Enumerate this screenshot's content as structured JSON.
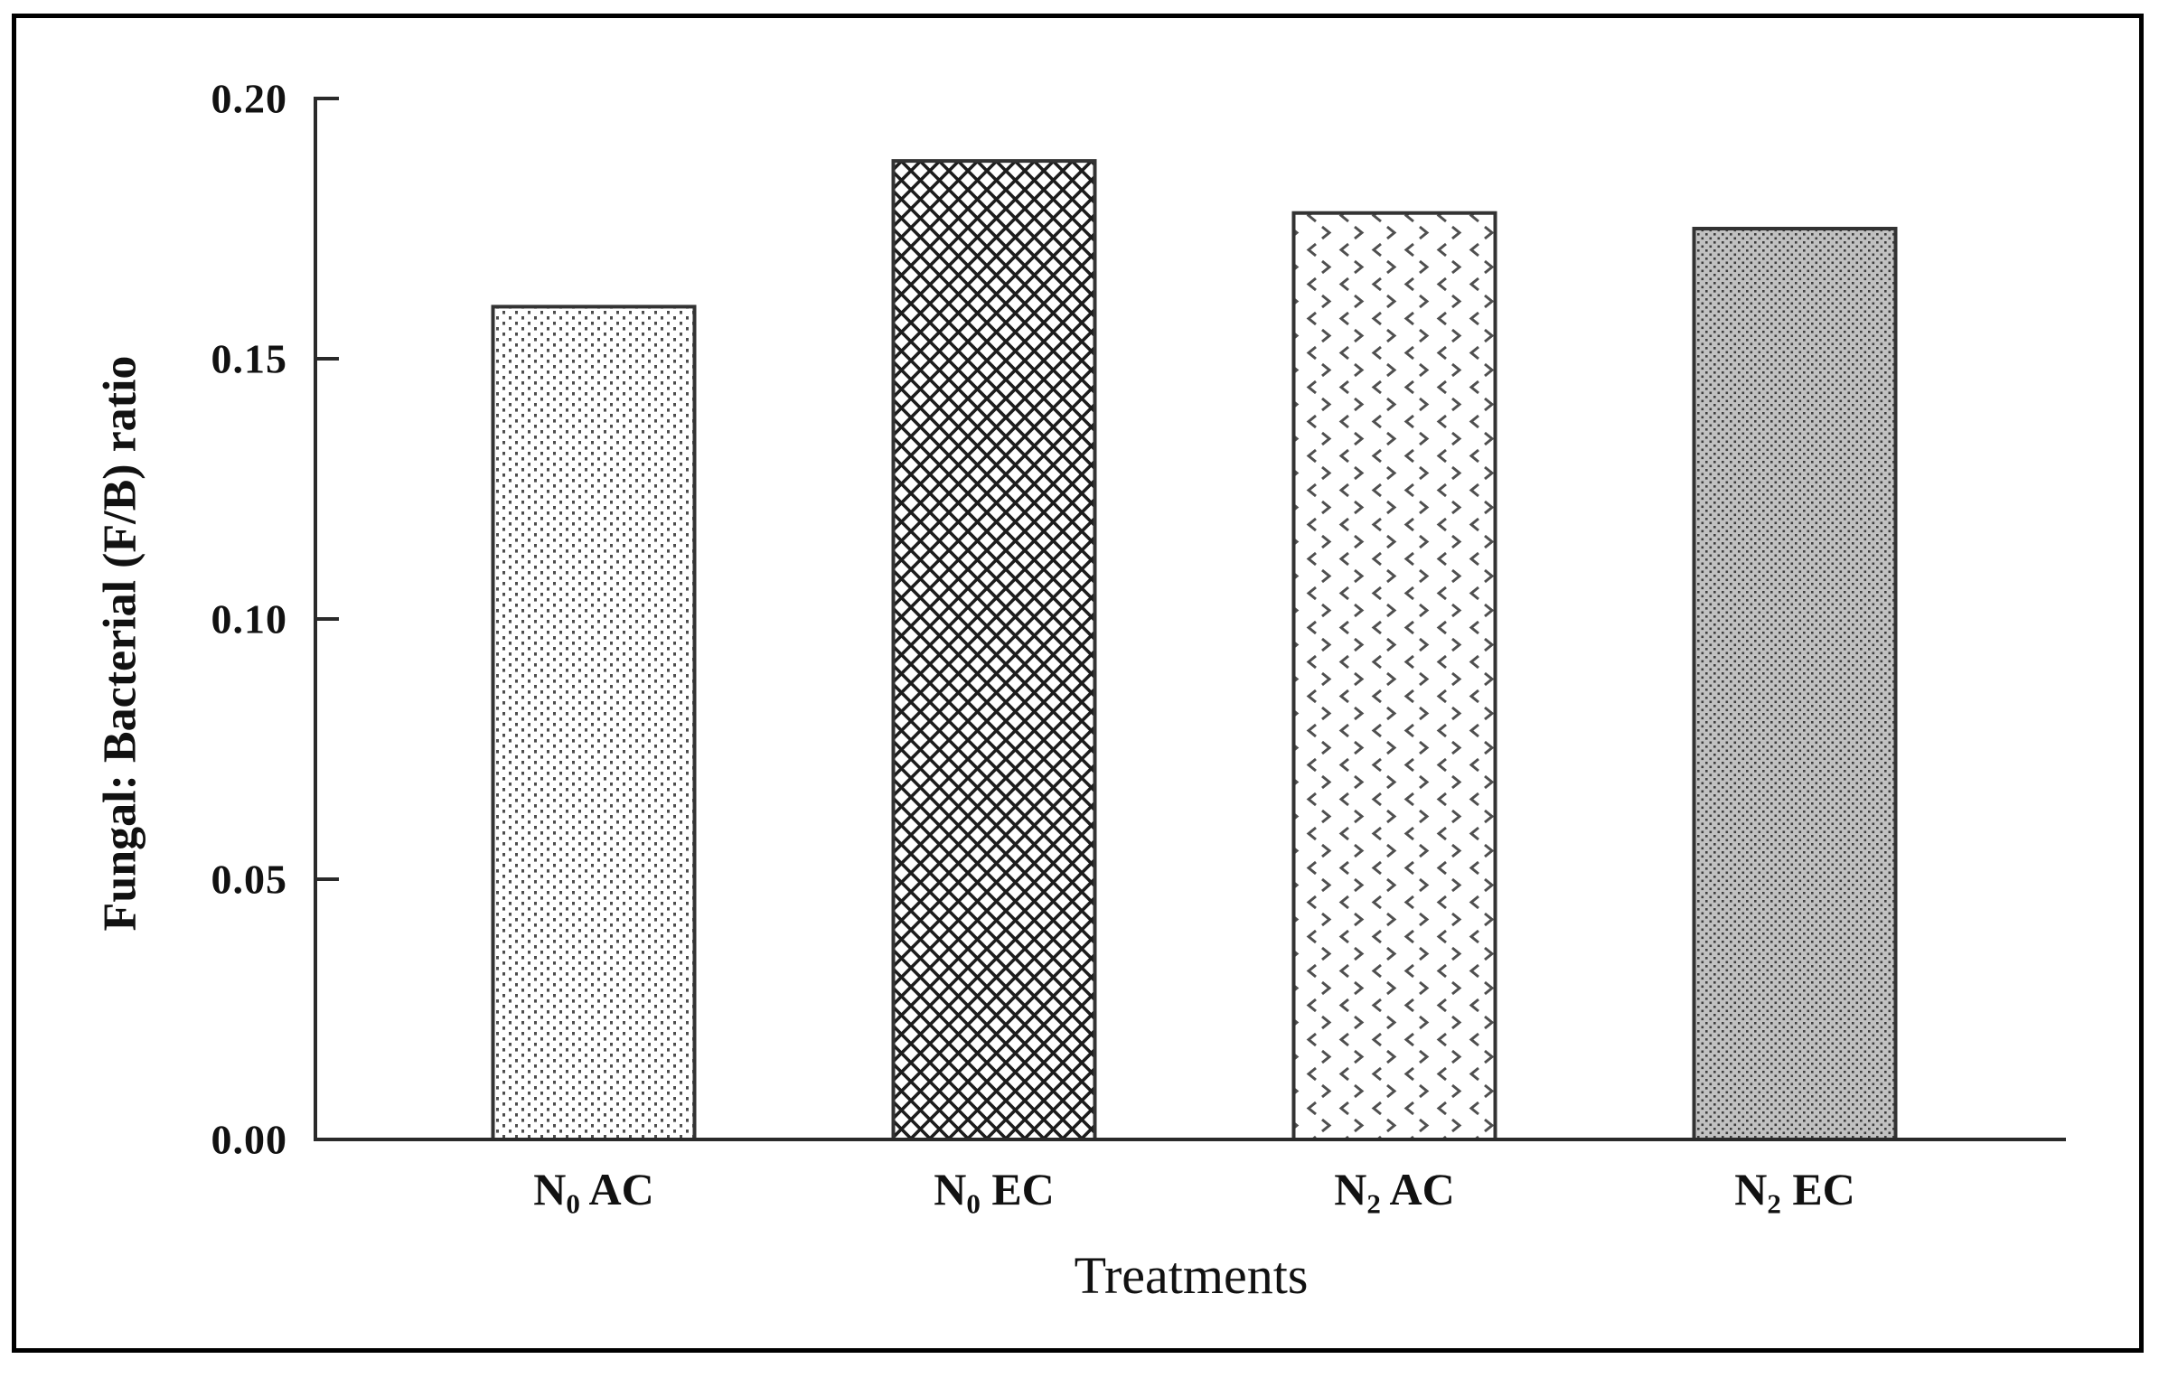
{
  "figure": {
    "frame_color": "#000000",
    "background_color": "#ffffff"
  },
  "chart_data": {
    "type": "bar",
    "title": "",
    "xlabel": "Treatments",
    "ylabel": "Fungal: Bacterial (F/B) ratio",
    "categories": [
      "N0 AC",
      "N0 EC",
      "N2 AC",
      "N2 EC"
    ],
    "categories_parts": [
      {
        "main": "N",
        "sub": "0",
        "suffix": " AC"
      },
      {
        "main": "N",
        "sub": "0",
        "suffix": " EC"
      },
      {
        "main": "N",
        "sub": "2",
        "suffix": " AC"
      },
      {
        "main": "N",
        "sub": "2",
        "suffix": " EC"
      }
    ],
    "values": [
      0.16,
      0.188,
      0.178,
      0.175
    ],
    "ylim": [
      0.0,
      0.2
    ],
    "yticks": [
      {
        "value": 0.0,
        "label": "0.00"
      },
      {
        "value": 0.05,
        "label": "0.05"
      },
      {
        "value": 0.1,
        "label": "0.10"
      },
      {
        "value": 0.15,
        "label": "0.15"
      },
      {
        "value": 0.2,
        "label": "0.20"
      }
    ],
    "grid": false,
    "legend": null,
    "bar_patterns": [
      "fine-dots",
      "crosshatch",
      "chevrons",
      "gray-dots"
    ],
    "colors": {
      "axis": "#2a2a2a",
      "bar_edge": "#333333",
      "text": "#111111",
      "pattern_dark": "#1c1c1c",
      "pattern_mid": "#4d4d4d",
      "gray_fill": "#c1c1c1"
    }
  }
}
